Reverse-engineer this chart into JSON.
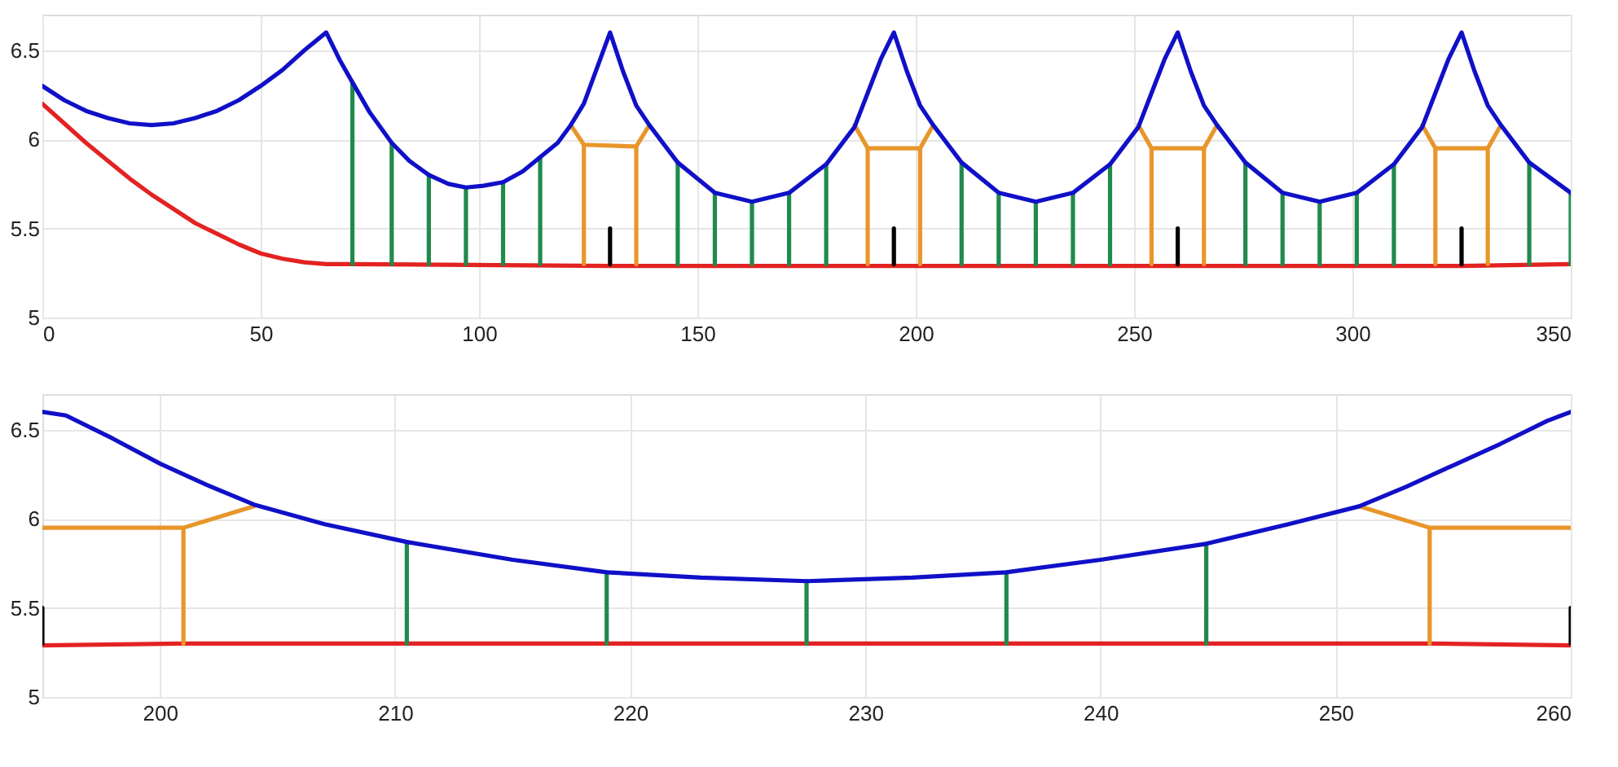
{
  "chart_data": [
    {
      "type": "line",
      "xlim": [
        0,
        350
      ],
      "ylim": [
        5,
        6.7
      ],
      "xticks": [
        0,
        50,
        100,
        150,
        200,
        250,
        300,
        350
      ],
      "yticks": [
        5,
        5.5,
        6,
        6.5
      ],
      "grid": true,
      "series": [
        {
          "color": "#e32222",
          "x": [
            0,
            5,
            10,
            15,
            20,
            25,
            30,
            35,
            40,
            45,
            50,
            55,
            60,
            65,
            70,
            130,
            195,
            260,
            325,
            350
          ],
          "values": [
            6.2,
            6.09,
            5.98,
            5.88,
            5.78,
            5.69,
            5.61,
            5.53,
            5.47,
            5.41,
            5.36,
            5.33,
            5.31,
            5.3,
            5.3,
            5.29,
            5.29,
            5.29,
            5.29,
            5.3
          ]
        },
        {
          "color": "#1f8a4c",
          "x": [
            71,
            71,
            null,
            80,
            80,
            null,
            88.5,
            88.5,
            null,
            97,
            97,
            null,
            105.5,
            105.5,
            null,
            114,
            114,
            null,
            145.5,
            145.5,
            null,
            154,
            154,
            null,
            162.5,
            162.5,
            null,
            171,
            171,
            null,
            179.5,
            179.5,
            null,
            210.5,
            210.5,
            null,
            219,
            219,
            null,
            227.5,
            227.5,
            null,
            236,
            236,
            null,
            244.5,
            244.5,
            null,
            275.5,
            275.5,
            null,
            284,
            284,
            null,
            292.5,
            292.5,
            null,
            301,
            301,
            null,
            309.5,
            309.5,
            null,
            340.5,
            340.5,
            null,
            350,
            350
          ],
          "values": [
            5.3,
            6.32,
            null,
            5.3,
            5.98,
            null,
            5.3,
            5.8,
            null,
            5.3,
            5.73,
            null,
            5.3,
            5.76,
            null,
            5.3,
            5.9,
            null,
            5.3,
            5.87,
            null,
            5.3,
            5.7,
            null,
            5.3,
            5.65,
            null,
            5.3,
            5.7,
            null,
            5.3,
            5.86,
            null,
            5.3,
            5.87,
            null,
            5.3,
            5.7,
            null,
            5.3,
            5.65,
            null,
            5.3,
            5.7,
            null,
            5.3,
            5.86,
            null,
            5.3,
            5.87,
            null,
            5.3,
            5.7,
            null,
            5.3,
            5.65,
            null,
            5.3,
            5.7,
            null,
            5.3,
            5.86,
            null,
            5.3,
            5.87,
            null,
            5.3,
            5.7
          ]
        },
        {
          "color": "#e8962a",
          "x": [
            121,
            124,
            136,
            139,
            null,
            124,
            124,
            null,
            136,
            136,
            null,
            186,
            189,
            201,
            204,
            null,
            189,
            189,
            null,
            201,
            201,
            null,
            251,
            254,
            266,
            269,
            null,
            254,
            254,
            null,
            266,
            266,
            null,
            316,
            319,
            331,
            334,
            null,
            319,
            319,
            null,
            331,
            331
          ],
          "values": [
            6.08,
            5.97,
            5.96,
            6.08,
            null,
            5.97,
            5.3,
            null,
            5.96,
            5.3,
            null,
            6.08,
            5.95,
            5.95,
            6.08,
            null,
            5.95,
            5.3,
            null,
            5.95,
            5.3,
            null,
            6.08,
            5.95,
            5.95,
            6.08,
            null,
            5.95,
            5.3,
            null,
            5.95,
            5.3,
            null,
            6.08,
            5.95,
            5.95,
            6.08,
            null,
            5.95,
            5.3,
            null,
            5.95,
            5.3
          ]
        },
        {
          "color": "#000000",
          "x": [
            130,
            130,
            null,
            195,
            195,
            null,
            260,
            260,
            null,
            325,
            325
          ],
          "values": [
            5.3,
            5.5,
            null,
            5.3,
            5.5,
            null,
            5.3,
            5.5,
            null,
            5.3,
            5.5
          ]
        },
        {
          "color": "#1010c8",
          "x": [
            0,
            5,
            10,
            15,
            20,
            25,
            30,
            35,
            40,
            45,
            50,
            55,
            60,
            65,
            68,
            71,
            75,
            80,
            84,
            88.5,
            93,
            97,
            101,
            105.5,
            110,
            114,
            118,
            121,
            124,
            127,
            130,
            133,
            136,
            139,
            145.5,
            154,
            162.5,
            171,
            179.5,
            186,
            189,
            192,
            195,
            198,
            201,
            204,
            210.5,
            219,
            227.5,
            236,
            244.5,
            251,
            254,
            257,
            260,
            263,
            266,
            269,
            275.5,
            284,
            292.5,
            301,
            309.5,
            316,
            319,
            322,
            325,
            328,
            331,
            334,
            340.5,
            350
          ],
          "values": [
            6.3,
            6.22,
            6.16,
            6.12,
            6.09,
            6.08,
            6.09,
            6.12,
            6.16,
            6.22,
            6.3,
            6.39,
            6.5,
            6.6,
            6.45,
            6.32,
            6.15,
            5.98,
            5.88,
            5.8,
            5.75,
            5.73,
            5.74,
            5.76,
            5.82,
            5.9,
            5.98,
            6.08,
            6.2,
            6.4,
            6.6,
            6.38,
            6.19,
            6.08,
            5.87,
            5.7,
            5.65,
            5.7,
            5.86,
            6.07,
            6.26,
            6.45,
            6.6,
            6.38,
            6.19,
            6.08,
            5.87,
            5.7,
            5.65,
            5.7,
            5.86,
            6.07,
            6.26,
            6.45,
            6.6,
            6.38,
            6.19,
            6.08,
            5.87,
            5.7,
            5.65,
            5.7,
            5.86,
            6.07,
            6.26,
            6.45,
            6.6,
            6.38,
            6.19,
            6.08,
            5.87,
            5.7
          ]
        }
      ]
    },
    {
      "type": "line",
      "xlim": [
        195,
        260
      ],
      "ylim": [
        5,
        6.7
      ],
      "xticks": [
        200,
        210,
        220,
        230,
        240,
        250,
        260
      ],
      "yticks": [
        5,
        5.5,
        6,
        6.5
      ],
      "grid": true,
      "series": [
        {
          "color": "#e32222",
          "x": [
            195,
            201,
            210.5,
            227.5,
            244.5,
            254,
            260
          ],
          "values": [
            5.29,
            5.3,
            5.3,
            5.3,
            5.3,
            5.3,
            5.29
          ]
        },
        {
          "color": "#1f8a4c",
          "x": [
            210.5,
            210.5,
            null,
            219,
            219,
            null,
            227.5,
            227.5,
            null,
            236,
            236,
            null,
            244.5,
            244.5
          ],
          "values": [
            5.3,
            5.87,
            null,
            5.3,
            5.7,
            null,
            5.3,
            5.65,
            null,
            5.3,
            5.7,
            null,
            5.3,
            5.86
          ]
        },
        {
          "color": "#e8962a",
          "x": [
            195,
            201,
            204,
            null,
            201,
            201,
            null,
            251,
            254,
            260,
            null,
            254,
            254
          ],
          "values": [
            5.95,
            5.95,
            6.07,
            null,
            5.95,
            5.3,
            null,
            6.07,
            5.95,
            5.95,
            null,
            5.95,
            5.3
          ]
        },
        {
          "color": "#000000",
          "x": [
            195,
            195,
            null,
            260,
            260
          ],
          "values": [
            5.3,
            5.5,
            null,
            5.3,
            5.5
          ]
        },
        {
          "color": "#1010c8",
          "x": [
            195,
            196,
            198,
            200,
            202,
            204,
            207,
            210.5,
            215,
            219,
            223,
            227.5,
            232,
            236,
            240,
            244.5,
            248,
            251,
            253,
            255,
            257,
            259,
            260
          ],
          "values": [
            6.6,
            6.58,
            6.45,
            6.31,
            6.19,
            6.08,
            5.97,
            5.87,
            5.77,
            5.7,
            5.67,
            5.65,
            5.67,
            5.7,
            5.77,
            5.86,
            5.97,
            6.07,
            6.18,
            6.3,
            6.42,
            6.55,
            6.6
          ]
        }
      ]
    }
  ]
}
